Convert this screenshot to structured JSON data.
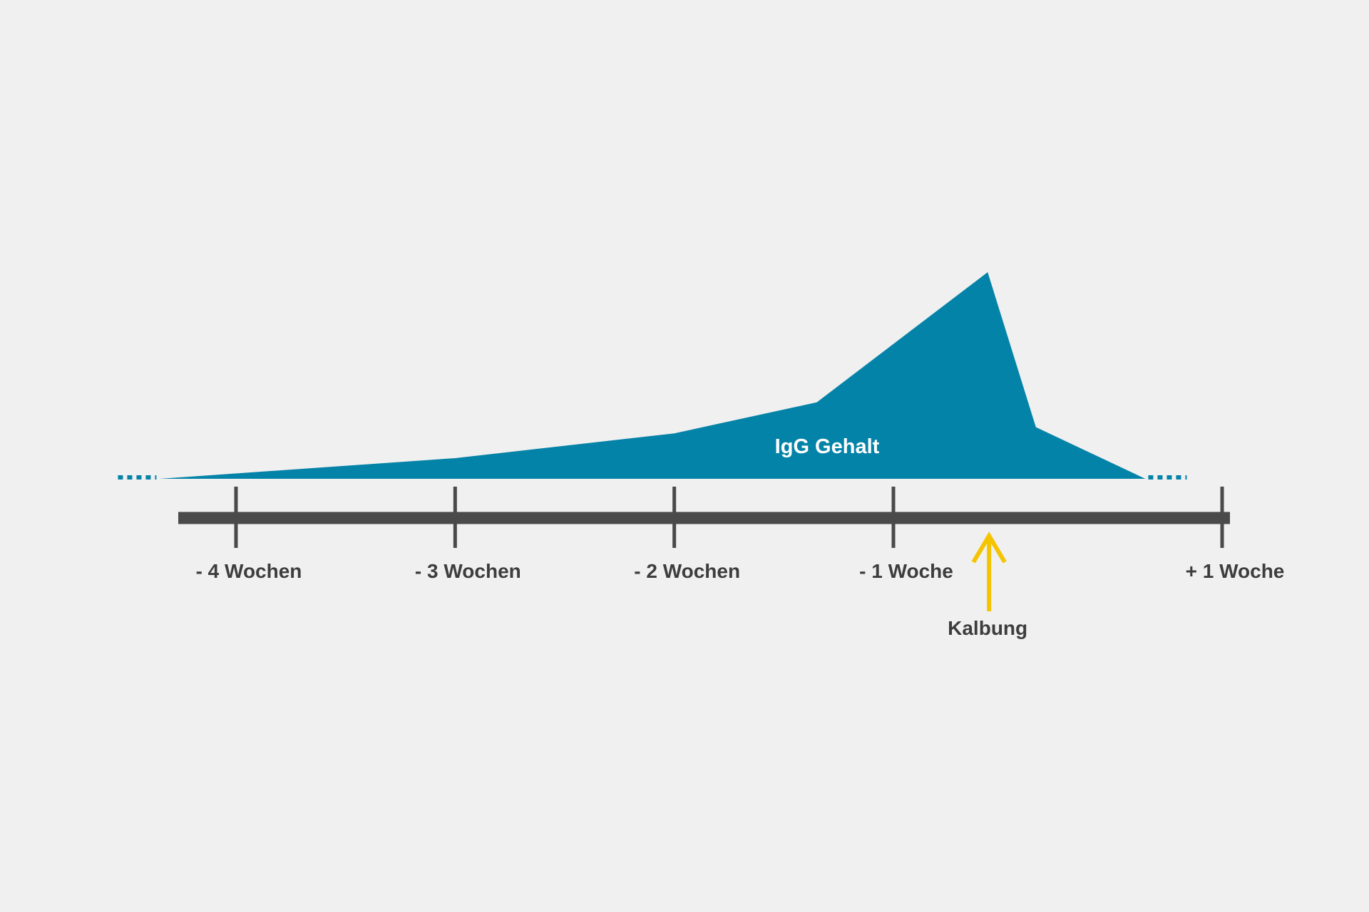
{
  "chart_data": {
    "type": "area",
    "x_unit": "weeks relative to calving",
    "xlim": [
      -4.35,
      1.35
    ],
    "ticks": [
      {
        "x": -4,
        "label": "- 4 Wochen"
      },
      {
        "x": -3,
        "label": "- 3 Wochen"
      },
      {
        "x": -2,
        "label": "- 2 Wochen"
      },
      {
        "x": -1,
        "label": "- 1 Woche"
      },
      {
        "x": 0.5,
        "label": "+ 1 Woche"
      }
    ],
    "series": [
      {
        "name": "IgG Gehalt",
        "points": [
          {
            "x": -4.35,
            "y": 0
          },
          {
            "x": -3.0,
            "y": 0.1
          },
          {
            "x": -2.0,
            "y": 0.22
          },
          {
            "x": -1.35,
            "y": 0.37
          },
          {
            "x": -0.57,
            "y": 1.0
          },
          {
            "x": -0.35,
            "y": 0.25
          },
          {
            "x": 0.15,
            "y": 0
          }
        ],
        "color": "#0483a8",
        "extends_beyond_axis": true
      }
    ],
    "event": {
      "x": -0.57,
      "label": "Kalbung",
      "color": "#f5c400"
    },
    "axis_color": "#4a4a4a",
    "label_color": "#3d3d3d",
    "grid": false,
    "legend": "none"
  }
}
